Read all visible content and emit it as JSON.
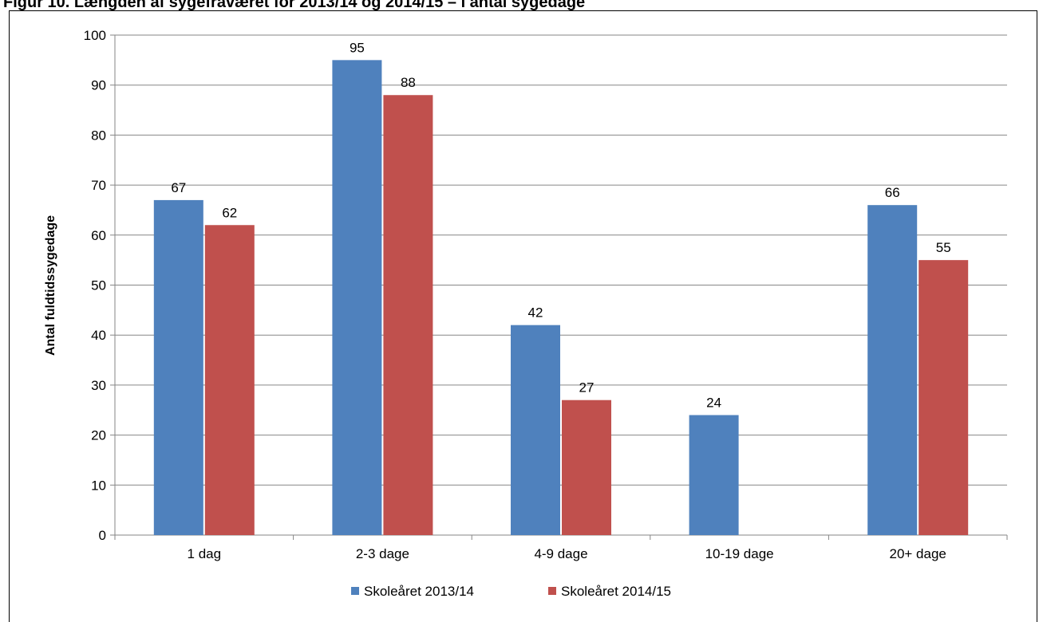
{
  "caption": "Figur 10. Længden af sygefraværet for 2013/14 og 2014/15 – i antal sygedage",
  "chart_data": {
    "type": "bar",
    "title": "",
    "xlabel": "",
    "ylabel": "Antal fuldtidssygedage",
    "ylim": [
      0,
      100
    ],
    "yticks": [
      0,
      10,
      20,
      30,
      40,
      50,
      60,
      70,
      80,
      90,
      100
    ],
    "categories": [
      "1 dag",
      "2-3 dage",
      "4-9 dage",
      "10-19 dage",
      "20+ dage"
    ],
    "series": [
      {
        "name": "Skoleåret 2013/14",
        "color": "#4F81BD",
        "values": [
          67,
          95,
          42,
          24,
          66
        ]
      },
      {
        "name": "Skoleåret 2014/15",
        "color": "#C0504D",
        "values": [
          62,
          88,
          27,
          null,
          55
        ]
      }
    ],
    "grid": true,
    "legend_position": "bottom"
  }
}
